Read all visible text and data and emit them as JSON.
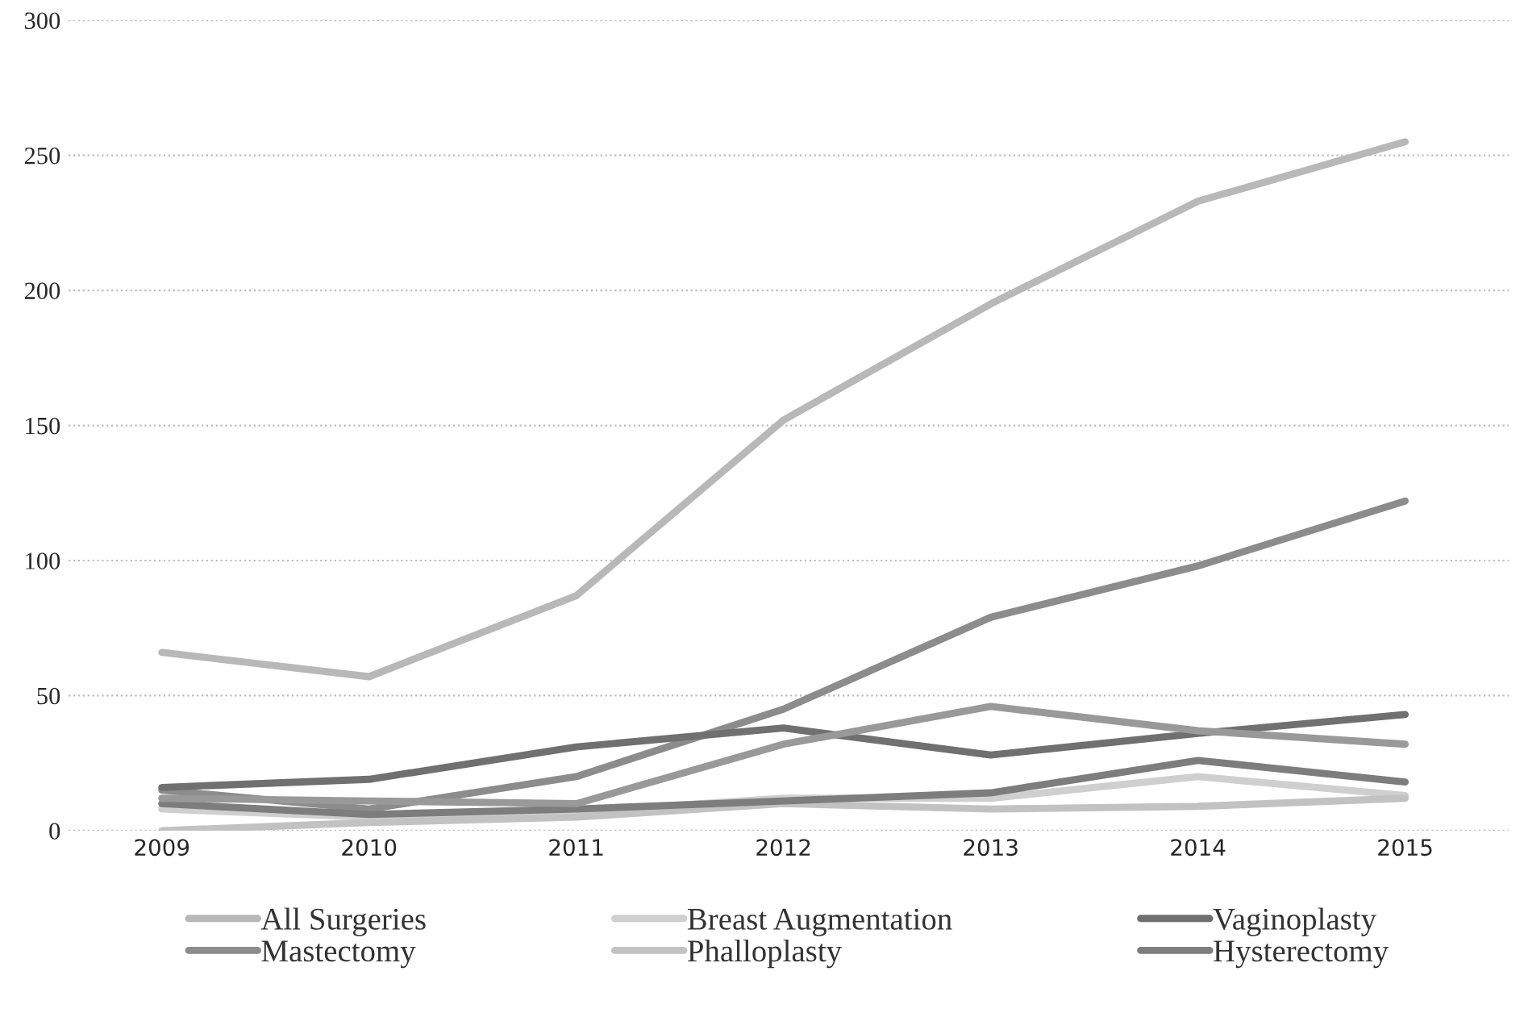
{
  "chart_data": {
    "type": "line",
    "categories": [
      "2009",
      "2010",
      "2011",
      "2012",
      "2013",
      "2014",
      "2015"
    ],
    "series": [
      {
        "name": "All Surgeries",
        "color": "#b8b8b8",
        "values": [
          66,
          57,
          87,
          152,
          195,
          233,
          255
        ]
      },
      {
        "name": "Mastectomy",
        "color": "#8c8c8c",
        "values": [
          15,
          8,
          20,
          45,
          79,
          98,
          122
        ]
      },
      {
        "name": "Breast Augmentation",
        "color": "#cfcfcf",
        "values": [
          8,
          5,
          7,
          12,
          12,
          20,
          13
        ]
      },
      {
        "name": "Phalloplasty",
        "color": "#c2c2c2",
        "values": [
          0,
          3,
          5,
          10,
          8,
          9,
          12
        ]
      },
      {
        "name": "Vaginoplasty",
        "color": "#707070",
        "values": [
          16,
          19,
          31,
          38,
          28,
          36,
          43
        ]
      },
      {
        "name": "Hysterectomy",
        "color": "#7d7d7d",
        "values": [
          10,
          6,
          8,
          11,
          14,
          26,
          18
        ]
      },
      {
        "color": "#999999",
        "values": [
          12,
          11,
          10,
          32,
          46,
          37,
          32
        ]
      }
    ],
    "ylim": [
      0,
      300
    ],
    "yticks": [
      0,
      50,
      100,
      150,
      200,
      250,
      300
    ],
    "grid": "y",
    "legend": "bottom",
    "line_style": "solid",
    "marker": "none"
  }
}
